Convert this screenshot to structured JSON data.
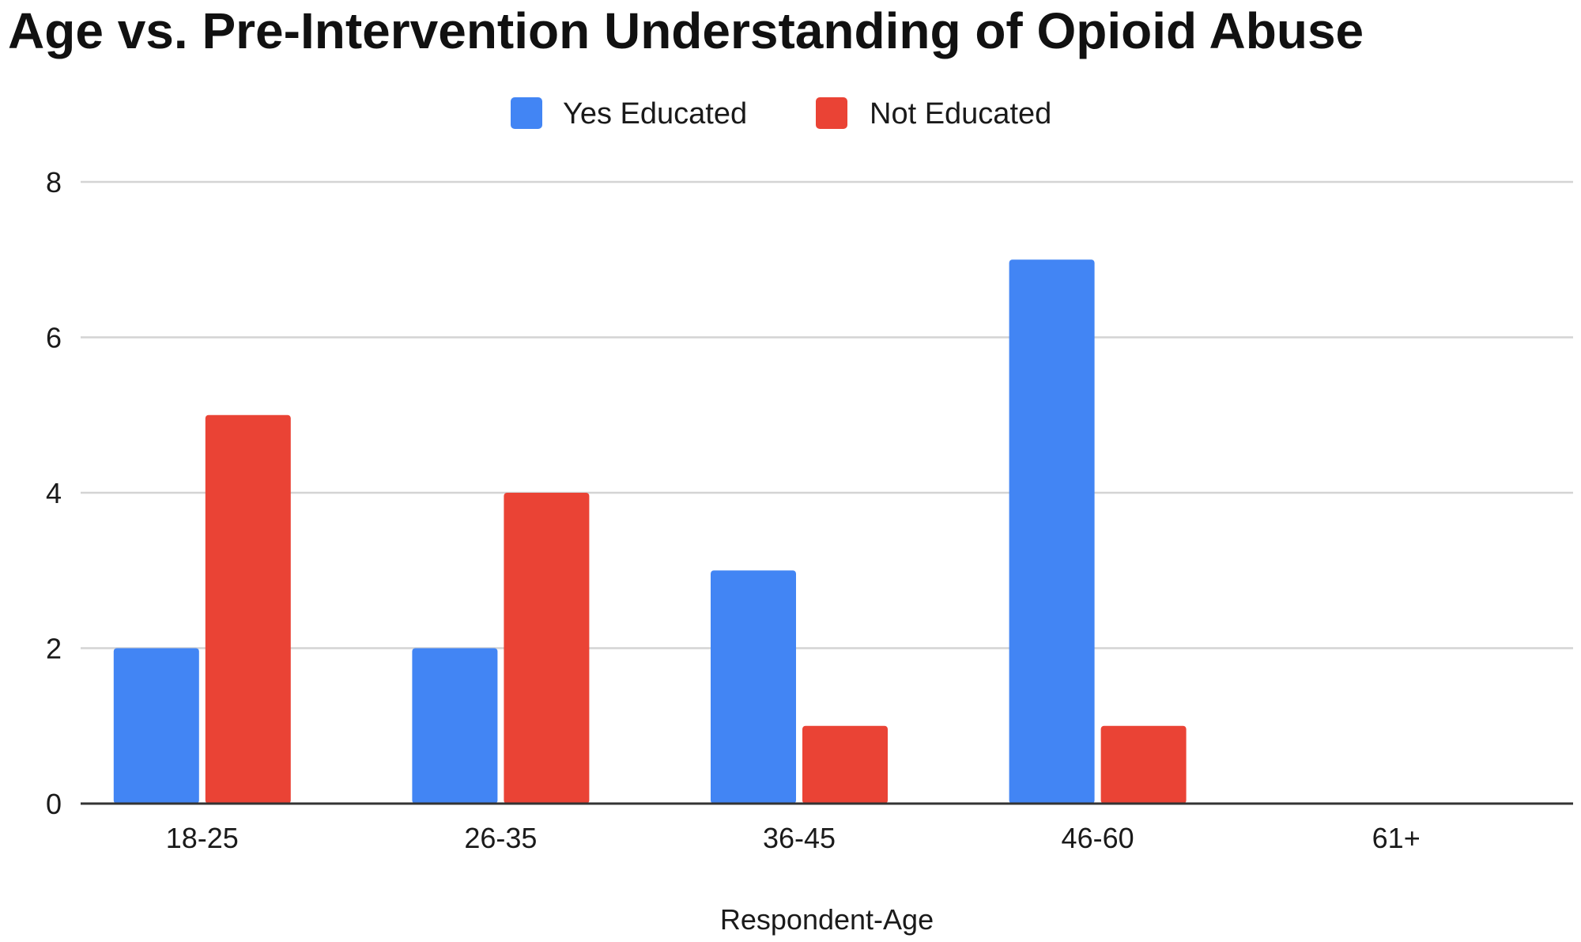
{
  "chart_data": {
    "type": "bar",
    "title": "Age vs. Pre-Intervention Understanding of Opioid Abuse",
    "xlabel": "Respondent-Age",
    "ylabel": "",
    "categories": [
      "18-25",
      "26-35",
      "36-45",
      "46-60",
      "61+"
    ],
    "series": [
      {
        "name": "Yes Educated",
        "values": [
          2,
          2,
          3,
          7,
          0
        ],
        "color": "#4285f4"
      },
      {
        "name": "Not Educated",
        "values": [
          5,
          4,
          1,
          1,
          0
        ],
        "color": "#ea4335"
      }
    ],
    "ylim": [
      0,
      8
    ],
    "yticks": [
      0,
      2,
      4,
      6,
      8
    ],
    "grid": true,
    "legend_position": "top-center"
  }
}
